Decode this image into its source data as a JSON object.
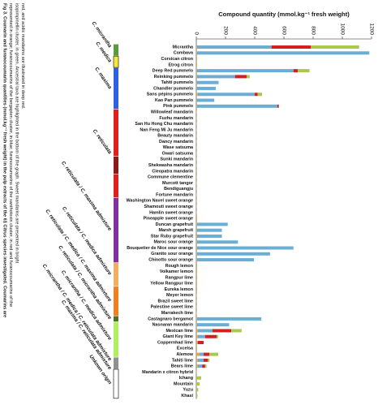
{
  "chart_data": {
    "type": "bar",
    "title": "Compound quantity (mmol.kg⁻¹ fresh weight)",
    "caption": [
      "Fig 3. Coumarin and furanocoumarin quantities (mmol.kg⁻¹ fresh weight) in the pulp extracts of the 61 Citrus species investigated. Coumarins are",
      "represented in orange; furanocoumarins of the bergapten cluster, in blue; furanocoumarins of the xanthotoxin cluster, in red and furanocoumarins of the",
      "isopimpinellin cluster, in green. Ancestral taxa are highlighted in the bottom of the graph. Sweet mandarins are presented in bright",
      "red, and acidic mandarins are illustrated in deep red."
    ],
    "categories": [
      "Micrantha",
      "Combava",
      "Corsican citron",
      "Etrog citron",
      "Deep Red pummelo",
      "Reinking pummelo",
      "Tahiti pummelo",
      "Chandler pummelo",
      "Sans pépins pummelo",
      "Kao Pan pummelo",
      "Pink pummelo",
      "Willowleaf mandarin",
      "Fuzhu mandarin",
      "San Hu Hong Chu mandarin",
      "Nan Feng Mi Ju mandarin",
      "Beauty mandarin",
      "Dancy mandarin",
      "Wase satsuma",
      "Owari satsuma",
      "Sunki mandarin",
      "Shekwasha mandarin",
      "Cleopatra mandarin",
      "Commune clementine",
      "Murcott tangor",
      "Bendiguangju",
      "Fortune mandarin",
      "Washington Navel sweet orange",
      "Shamouti sweet orange",
      "Hamlin sweet orange",
      "Pineapple sweet orange",
      "Duncan grapefruit",
      "Marsh grapefruit",
      "Star Ruby grapefruit",
      "Maroc sour orange",
      "Bouquetier de Nice sour orange",
      "Granito sour orange",
      "Chinotto sour orange",
      "Rough lemon",
      "Volkamer lemon",
      "Rangpur lime",
      "Yellow Rangpur lime",
      "Eureka lemon",
      "Meyer lemon",
      "Brazil sweet lime",
      "Palestine sweet lime",
      "Marrakech lime",
      "Castagnaro bergamot",
      "Nasnaran mandarin",
      "Mexican lime",
      "Giant Key lime",
      "Coppernhad lime",
      "Excelsa",
      "Alemow",
      "Tahiti lime",
      "Bears lime",
      "Mandarin x citron hybrid",
      "Ichang",
      "Mountain",
      "Yuzu",
      "Khasi"
    ],
    "series": [
      {
        "color": "#f0a030",
        "values": [
          5,
          5,
          5,
          5,
          5,
          5,
          3,
          3,
          10,
          3,
          5,
          3,
          3,
          3,
          3,
          3,
          3,
          3,
          3,
          3,
          3,
          3,
          3,
          3,
          3,
          3,
          3,
          3,
          3,
          5,
          5,
          5,
          5,
          5,
          5,
          5,
          5,
          5,
          5,
          5,
          5,
          5,
          3,
          3,
          3,
          3,
          5,
          5,
          10,
          10,
          10,
          5,
          20,
          10,
          10,
          3,
          3,
          3,
          3,
          3
        ]
      },
      {
        "color": "#6aaed6",
        "values": [
          510,
          1180,
          0,
          0,
          660,
          260,
          150,
          130,
          390,
          120,
          550,
          0,
          0,
          0,
          0,
          0,
          0,
          0,
          0,
          0,
          0,
          0,
          0,
          0,
          0,
          0,
          0,
          0,
          0,
          0,
          210,
          170,
          170,
          280,
          660,
          500,
          390,
          0,
          0,
          0,
          0,
          0,
          0,
          0,
          0,
          0,
          440,
          220,
          100,
          50,
          0,
          0,
          30,
          40,
          30,
          0,
          0,
          0,
          0,
          0
        ]
      },
      {
        "color": "#d02020",
        "values": [
          270,
          0,
          0,
          0,
          30,
          80,
          0,
          0,
          20,
          0,
          10,
          0,
          0,
          0,
          0,
          0,
          0,
          0,
          0,
          0,
          0,
          0,
          0,
          0,
          0,
          0,
          0,
          0,
          0,
          0,
          0,
          0,
          0,
          0,
          0,
          0,
          0,
          0,
          0,
          0,
          0,
          0,
          0,
          0,
          0,
          0,
          0,
          0,
          130,
          80,
          40,
          0,
          40,
          30,
          20,
          0,
          0,
          0,
          0,
          0
        ]
      },
      {
        "color": "#a8c850",
        "values": [
          330,
          0,
          0,
          0,
          80,
          20,
          0,
          0,
          30,
          0,
          0,
          0,
          0,
          0,
          0,
          0,
          0,
          0,
          0,
          0,
          0,
          0,
          0,
          0,
          0,
          0,
          0,
          0,
          0,
          0,
          0,
          0,
          0,
          0,
          0,
          0,
          0,
          0,
          0,
          0,
          0,
          0,
          0,
          0,
          0,
          0,
          0,
          0,
          70,
          10,
          0,
          0,
          60,
          10,
          10,
          0,
          30,
          20,
          10,
          5
        ]
      }
    ],
    "xlim": [
      0,
      1200
    ],
    "xticks": [
      0,
      200,
      400,
      600,
      800,
      1000,
      1200
    ],
    "strips": [
      {
        "start": 0,
        "end": 1,
        "color": "#5a9a3a"
      },
      {
        "start": 2,
        "end": 3,
        "color": "#f5e83a"
      },
      {
        "start": 4,
        "end": 10,
        "color": "#3060e0"
      },
      {
        "start": 11,
        "end": 18,
        "color": "#e02020"
      },
      {
        "start": 19,
        "end": 21,
        "color": "#8b1a1a"
      },
      {
        "start": 22,
        "end": 25,
        "color": "#e02020"
      },
      {
        "start": 26,
        "end": 36,
        "color": "#8030a0"
      },
      {
        "start": 37,
        "end": 40,
        "color": "#f0b060"
      },
      {
        "start": 41,
        "end": 45,
        "color": "#f08020"
      },
      {
        "start": 46,
        "end": 46,
        "color": "#50702a"
      },
      {
        "start": 47,
        "end": 52,
        "color": "#b0f060"
      },
      {
        "start": 53,
        "end": 54,
        "color": "#909090"
      },
      {
        "start": 55,
        "end": 59,
        "color": "#ffffff"
      }
    ],
    "groups": [
      {
        "label": "C. micrantha",
        "row": 0
      },
      {
        "label": "C. medica",
        "row": 2.5
      },
      {
        "label": "C. maxima",
        "row": 7
      },
      {
        "label": "C. reticulata",
        "row": 18
      },
      {
        "label": "C. reticulata / C. maxima admixture",
        "row": 31
      },
      {
        "label": "C. reticulata / C. medica admixture",
        "row": 38.5
      },
      {
        "label": "C. reticulata / C. medica / C. maxima admixture",
        "row": 43
      },
      {
        "label": "C. reticulata / C. micrantha admixture",
        "row": 46
      },
      {
        "label": "C. micrantha / C. medica admixture",
        "row": 49.5
      },
      {
        "label": "C. micrantha / C. medica / C. reticulata admixture",
        "row": 53
      },
      {
        "label": "C. maxima / C. reticulata admixture",
        "row": 54.5
      },
      {
        "label": "Unkown origin",
        "row": 57
      }
    ]
  }
}
